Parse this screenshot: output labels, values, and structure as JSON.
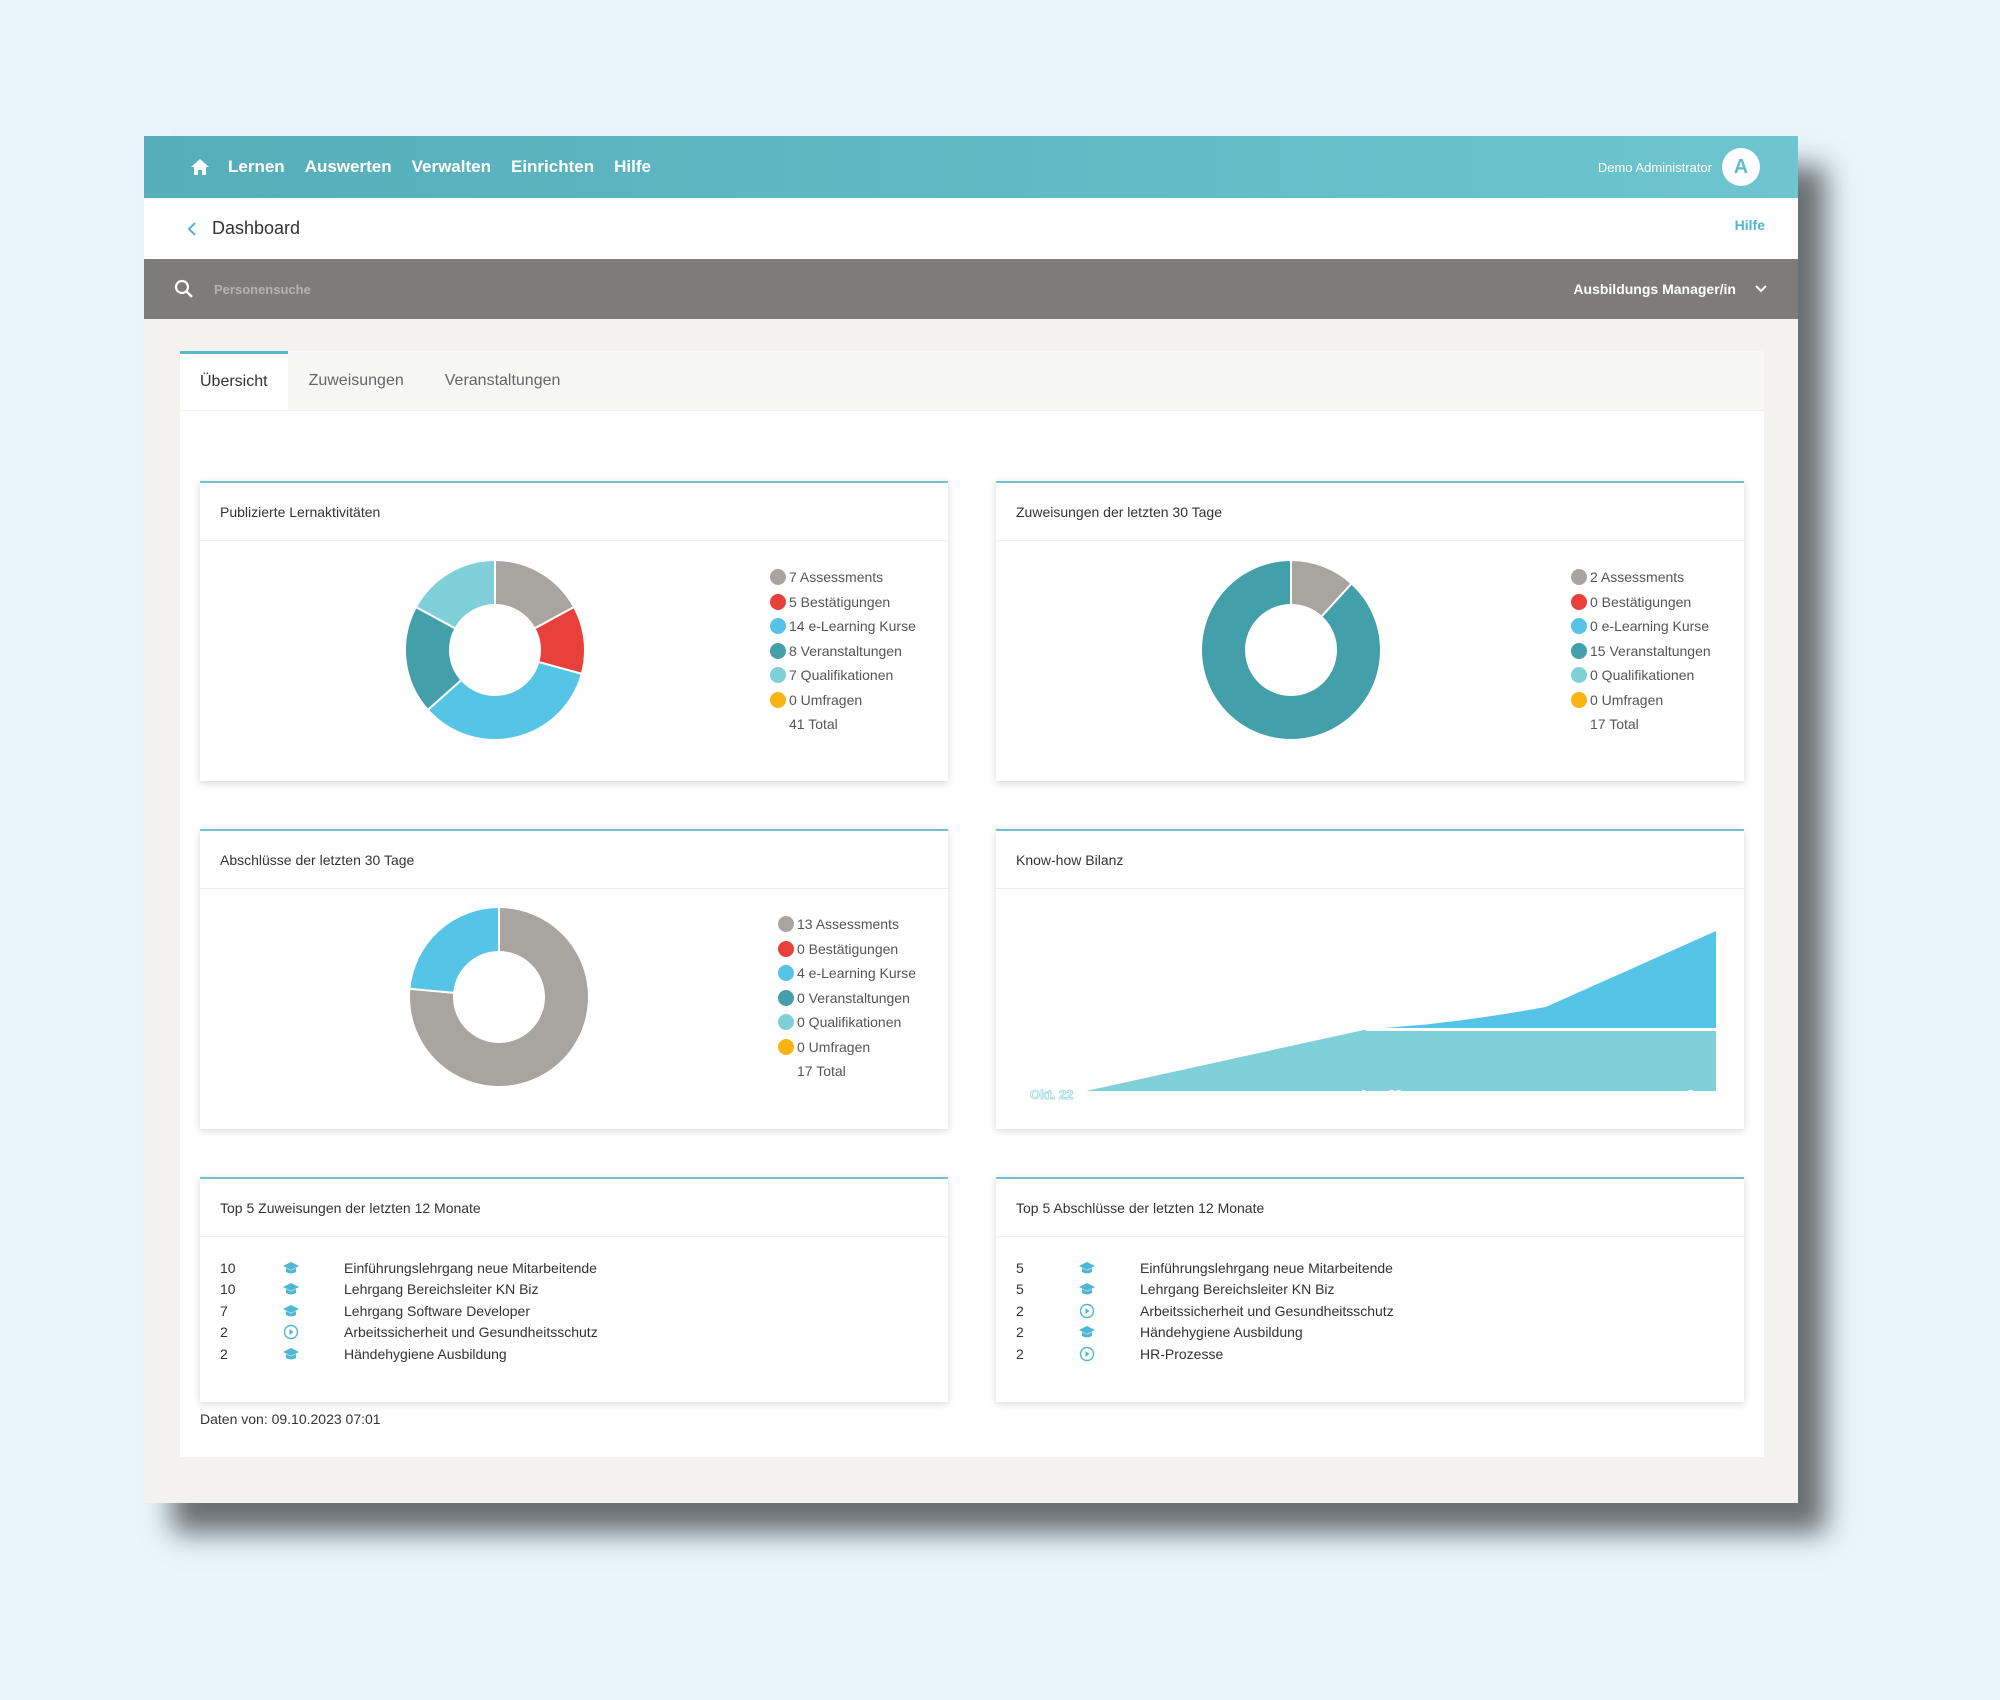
{
  "nav": {
    "items": [
      "Lernen",
      "Auswerten",
      "Verwalten",
      "Einrichten",
      "Hilfe"
    ],
    "user_name": "Demo Administrator",
    "avatar_letter": "A"
  },
  "breadcrumb": {
    "title": "Dashboard",
    "help": "Hilfe"
  },
  "search": {
    "placeholder": "Personensuche",
    "role": "Ausbildungs Manager/in"
  },
  "tabs": [
    "Übersicht",
    "Zuweisungen",
    "Veranstaltungen"
  ],
  "colors": {
    "assessments": "#a8a4a0",
    "bestaetigungen": "#e8413a",
    "elearning": "#55c4e6",
    "veranstaltungen": "#43a0ab",
    "qualifikationen": "#7fd0d9",
    "umfragen": "#f9b312"
  },
  "cards": {
    "lernaktivitaeten": {
      "title": "Publizierte Lernaktivitäten",
      "legend": [
        "7 Assessments",
        "5 Bestätigungen",
        "14 e-Learning Kurse",
        "8 Veranstaltungen",
        "7 Qualifikationen",
        "0 Umfragen"
      ],
      "total": "41 Total"
    },
    "zuweisungen": {
      "title": "Zuweisungen der letzten 30 Tage",
      "legend": [
        "2 Assessments",
        "0 Bestätigungen",
        "0 e-Learning Kurse",
        "15 Veranstaltungen",
        "0 Qualifikationen",
        "0 Umfragen"
      ],
      "total": "17 Total"
    },
    "abschluesse": {
      "title": "Abschlüsse der letzten 30 Tage",
      "legend": [
        "13 Assessments",
        "0 Bestätigungen",
        "4 e-Learning Kurse",
        "0 Veranstaltungen",
        "0 Qualifikationen",
        "0 Umfragen"
      ],
      "total": "17 Total"
    },
    "knowhow": {
      "title": "Know-how Bilanz",
      "x_labels": [
        "Okt. 22",
        "Apr. 23",
        "Sep. 23"
      ]
    },
    "top_zuweisungen": {
      "title": "Top 5 Zuweisungen der letzten 12 Monate",
      "rows": [
        {
          "count": "10",
          "icon": "graduation-cap-icon",
          "name": "Einführungslehrgang neue Mitarbeitende"
        },
        {
          "count": "10",
          "icon": "graduation-cap-icon",
          "name": "Lehrgang Bereichsleiter KN Biz"
        },
        {
          "count": "7",
          "icon": "graduation-cap-icon",
          "name": "Lehrgang Software Developer"
        },
        {
          "count": "2",
          "icon": "play-circle-icon",
          "name": "Arbeitssicherheit und Gesundheitsschutz"
        },
        {
          "count": "2",
          "icon": "graduation-cap-icon",
          "name": "Händehygiene Ausbildung"
        }
      ]
    },
    "top_abschluesse": {
      "title": "Top 5 Abschlüsse der letzten 12 Monate",
      "rows": [
        {
          "count": "5",
          "icon": "graduation-cap-icon",
          "name": "Einführungslehrgang neue Mitarbeitende"
        },
        {
          "count": "5",
          "icon": "graduation-cap-icon",
          "name": "Lehrgang Bereichsleiter KN Biz"
        },
        {
          "count": "2",
          "icon": "play-circle-icon",
          "name": "Arbeitssicherheit und Gesundheitsschutz"
        },
        {
          "count": "2",
          "icon": "graduation-cap-icon",
          "name": "Händehygiene Ausbildung"
        },
        {
          "count": "2",
          "icon": "play-circle-icon",
          "name": "HR-Prozesse"
        }
      ]
    }
  },
  "footer": {
    "date": "Daten von: 09.10.2023 07:01"
  },
  "chart_data": [
    {
      "type": "pie",
      "categories": [
        "Assessments",
        "Bestätigungen",
        "e-Learning Kurse",
        "Veranstaltungen",
        "Qualifikationen",
        "Umfragen"
      ],
      "values": [
        7,
        5,
        14,
        8,
        7,
        0
      ]
    },
    {
      "type": "pie",
      "categories": [
        "Assessments",
        "Bestätigungen",
        "e-Learning Kurse",
        "Veranstaltungen",
        "Qualifikationen",
        "Umfragen"
      ],
      "values": [
        2,
        0,
        0,
        15,
        0,
        0
      ]
    },
    {
      "type": "pie",
      "categories": [
        "Assessments",
        "Bestätigungen",
        "e-Learning Kurse",
        "Veranstaltungen",
        "Qualifikationen",
        "Umfragen"
      ],
      "values": [
        13,
        0,
        4,
        0,
        0,
        0
      ]
    },
    {
      "type": "area",
      "x": [
        "Okt. 22",
        "Apr. 23",
        "Sep. 23"
      ],
      "series": [
        {
          "values": [
            0,
            1.5,
            1.5
          ]
        },
        {
          "values": [
            0,
            0,
            2.4
          ]
        }
      ]
    }
  ]
}
